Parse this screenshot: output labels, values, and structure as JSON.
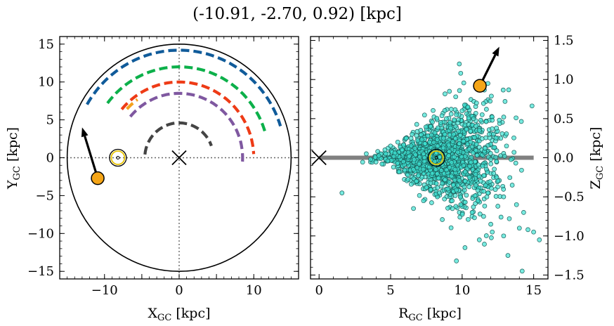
{
  "chart_data": [
    {
      "type": "scatter",
      "title": "(-10.91, -2.70, 0.92) [kpc]",
      "xlabel_main": "X",
      "xlabel_sub": "GC",
      "xlabel_unit": " [kpc]",
      "ylabel_main": "Y",
      "ylabel_sub": "GC",
      "ylabel_unit": " [kpc]",
      "xlim": [
        -16,
        16
      ],
      "ylim": [
        -16,
        16
      ],
      "xticks": [
        -10,
        -5,
        0,
        5,
        10
      ],
      "xtick_labels": [
        "−10",
        "0",
        "10"
      ],
      "xtick_label_values": [
        -10,
        0,
        10
      ],
      "yticks": [
        -15,
        -10,
        -5,
        0,
        5,
        10,
        15
      ],
      "ytick_labels": [
        "−15",
        "−10",
        "−5",
        "0",
        "5",
        "10",
        "15"
      ],
      "outer_circle_radius": 15,
      "arms": [
        {
          "color": "#105b9a",
          "radius": 14.2,
          "a0": 1.35,
          "a1": 6.0
        },
        {
          "color": "#0cb04a",
          "radius": 12.0,
          "a0": 1.6,
          "a1": 6.0
        },
        {
          "color": "#f4a11d",
          "radius": 9.5,
          "a0": 1.8,
          "a1": 2.2
        },
        {
          "color": "#ee3b16",
          "radius": 10.0,
          "a0": 1.7,
          "a1": 6.5
        },
        {
          "color": "#7f58a0",
          "radius": 8.5,
          "a0": 1.7,
          "a1": 6.8
        },
        {
          "color": "#444444",
          "radius": 4.6,
          "a0": 0.5,
          "a1": 5.9
        }
      ],
      "sun": {
        "x": -8.2,
        "y": 0.0
      },
      "object": {
        "x": -10.91,
        "y": -2.7,
        "color": "#f5a517"
      },
      "velocity_arrow": {
        "x0": -10.91,
        "y0": -2.7,
        "x1": -13.0,
        "y1": 4.0
      },
      "galactic_center": {
        "x": 0,
        "y": 0
      }
    },
    {
      "type": "scatter",
      "xlabel_main": "R",
      "xlabel_sub": "GC",
      "xlabel_unit": " [kpc]",
      "ylabel_main": "Z",
      "ylabel_sub": "GC",
      "ylabel_unit": " [kpc]",
      "xlim": [
        -0.6,
        16
      ],
      "ylim": [
        -1.55,
        1.55
      ],
      "xticks": [
        0,
        5,
        10,
        15
      ],
      "xtick_labels": [
        "0",
        "5",
        "10",
        "15"
      ],
      "yticks": [
        -1.5,
        -1.0,
        -0.5,
        0.0,
        0.5,
        1.0,
        1.5
      ],
      "ytick_labels": [
        "−1.5",
        "−1.0",
        "−0.5",
        "0.0",
        "0.5",
        "1.0",
        "1.5"
      ],
      "disk": {
        "x0": 0,
        "x1": 15,
        "z": 0
      },
      "sun": {
        "x": 8.2,
        "y": 0.0
      },
      "object": {
        "x": 11.24,
        "y": 0.92,
        "color": "#f5a517"
      },
      "velocity_arrow": {
        "x0": 11.24,
        "y0": 0.92,
        "x1": 12.6,
        "y1": 1.42
      },
      "galactic_center": {
        "x": 0,
        "y": 0
      },
      "points_color": "#3ee3d3",
      "points": [
        [
          1.6,
          -0.45
        ],
        [
          3.3,
          0.05
        ],
        [
          3.6,
          -0.02
        ],
        [
          4.1,
          0.08
        ],
        [
          4.4,
          -0.08
        ],
        [
          4.6,
          0.1
        ],
        [
          4.8,
          -0.04
        ],
        [
          5.0,
          0.15
        ],
        [
          5.2,
          -0.12
        ],
        [
          5.3,
          0.06
        ],
        [
          5.5,
          0.2
        ],
        [
          5.6,
          -0.18
        ],
        [
          5.8,
          0.1
        ],
        [
          5.9,
          -0.05
        ],
        [
          6.1,
          0.25
        ],
        [
          6.2,
          -0.22
        ],
        [
          6.3,
          0.02
        ],
        [
          6.5,
          0.3
        ],
        [
          6.6,
          -0.15
        ],
        [
          6.7,
          0.12
        ],
        [
          6.8,
          -0.3
        ],
        [
          6.9,
          0.22
        ],
        [
          7.0,
          -0.08
        ],
        [
          7.1,
          0.35
        ],
        [
          7.2,
          -0.25
        ],
        [
          7.3,
          0.05
        ],
        [
          7.4,
          0.18
        ],
        [
          7.5,
          -0.38
        ],
        [
          7.6,
          0.28
        ],
        [
          7.7,
          -0.12
        ],
        [
          7.8,
          0.4
        ],
        [
          7.9,
          -0.2
        ],
        [
          8.0,
          0.1
        ],
        [
          8.1,
          0.32
        ],
        [
          8.2,
          -0.33
        ],
        [
          8.3,
          0.15
        ],
        [
          8.4,
          -0.45
        ],
        [
          8.5,
          0.45
        ],
        [
          8.6,
          -0.05
        ],
        [
          8.7,
          0.25
        ],
        [
          8.8,
          -0.28
        ],
        [
          8.9,
          0.5
        ],
        [
          9.0,
          -0.4
        ],
        [
          9.1,
          0.08
        ],
        [
          9.2,
          0.38
        ],
        [
          9.3,
          -0.55
        ],
        [
          9.4,
          0.3
        ],
        [
          9.5,
          -0.15
        ],
        [
          9.6,
          0.55
        ],
        [
          9.7,
          -0.35
        ],
        [
          9.8,
          0.18
        ],
        [
          9.9,
          -0.6
        ],
        [
          10.0,
          0.6
        ],
        [
          10.1,
          -0.1
        ],
        [
          10.2,
          0.42
        ],
        [
          10.3,
          -0.48
        ],
        [
          10.4,
          0.65
        ],
        [
          10.5,
          -0.25
        ],
        [
          10.6,
          0.2
        ],
        [
          10.7,
          -0.7
        ],
        [
          10.8,
          0.5
        ],
        [
          10.9,
          -0.05
        ],
        [
          11.0,
          0.7
        ],
        [
          11.1,
          -0.55
        ],
        [
          11.2,
          0.35
        ],
        [
          11.3,
          -0.3
        ],
        [
          11.4,
          0.55
        ],
        [
          11.5,
          -0.75
        ],
        [
          11.6,
          0.12
        ],
        [
          11.7,
          0.62
        ],
        [
          11.8,
          -0.45
        ],
        [
          11.9,
          0.3
        ],
        [
          12.0,
          -0.85
        ],
        [
          12.1,
          0.48
        ],
        [
          12.2,
          -0.2
        ],
        [
          12.4,
          0.38
        ],
        [
          12.5,
          -0.62
        ],
        [
          12.7,
          0.25
        ],
        [
          12.9,
          -0.5
        ],
        [
          13.1,
          0.15
        ],
        [
          13.3,
          -0.78
        ],
        [
          13.5,
          -0.35
        ],
        [
          13.8,
          -0.6
        ],
        [
          14.0,
          -0.9
        ],
        [
          14.3,
          -0.7
        ],
        [
          14.6,
          -0.92
        ],
        [
          15.0,
          -0.95
        ],
        [
          15.4,
          -1.05
        ],
        [
          14.2,
          -1.45
        ],
        [
          13.2,
          -1.25
        ],
        [
          10.2,
          -1.15
        ],
        [
          9.8,
          1.2
        ],
        [
          9.9,
          1.08
        ],
        [
          11.8,
          0.95
        ],
        [
          13.0,
          0.72
        ],
        [
          12.6,
          0.48
        ],
        [
          6.6,
          -0.65
        ],
        [
          7.3,
          -0.55
        ],
        [
          9.6,
          -1.32
        ],
        [
          11.2,
          -1.05
        ],
        [
          12.9,
          -1.0
        ]
      ]
    }
  ]
}
